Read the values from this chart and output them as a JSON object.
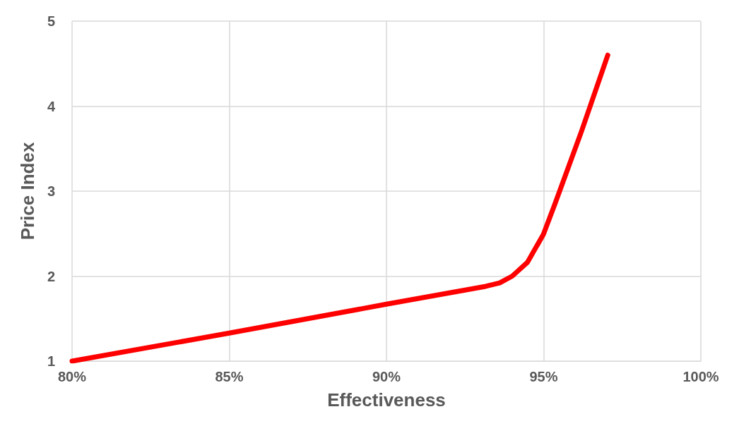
{
  "chart_data": {
    "type": "line",
    "xlabel": "Effectiveness",
    "ylabel": "Price Index",
    "x": [
      80,
      85,
      90,
      93.16,
      93.6,
      94.0,
      94.48,
      94.99,
      95.36,
      96.2,
      97.04
    ],
    "series": [
      {
        "color": "#ff0000",
        "values": [
          1.0,
          1.33,
          1.67,
          1.88,
          1.92,
          2.0,
          2.16,
          2.49,
          2.85,
          3.7,
          4.6
        ]
      }
    ],
    "xlim": [
      80,
      100
    ],
    "xticks": [
      {
        "value": 80,
        "label": "80%"
      },
      {
        "value": 85,
        "label": "85%"
      },
      {
        "value": 90,
        "label": "90%"
      },
      {
        "value": 95,
        "label": "95%"
      },
      {
        "value": 100,
        "label": "100%"
      }
    ],
    "ylim": [
      1,
      5
    ],
    "yticks": [
      1,
      2,
      3,
      4,
      5
    ],
    "grid": true,
    "marker": "none",
    "line_style": "solid"
  }
}
